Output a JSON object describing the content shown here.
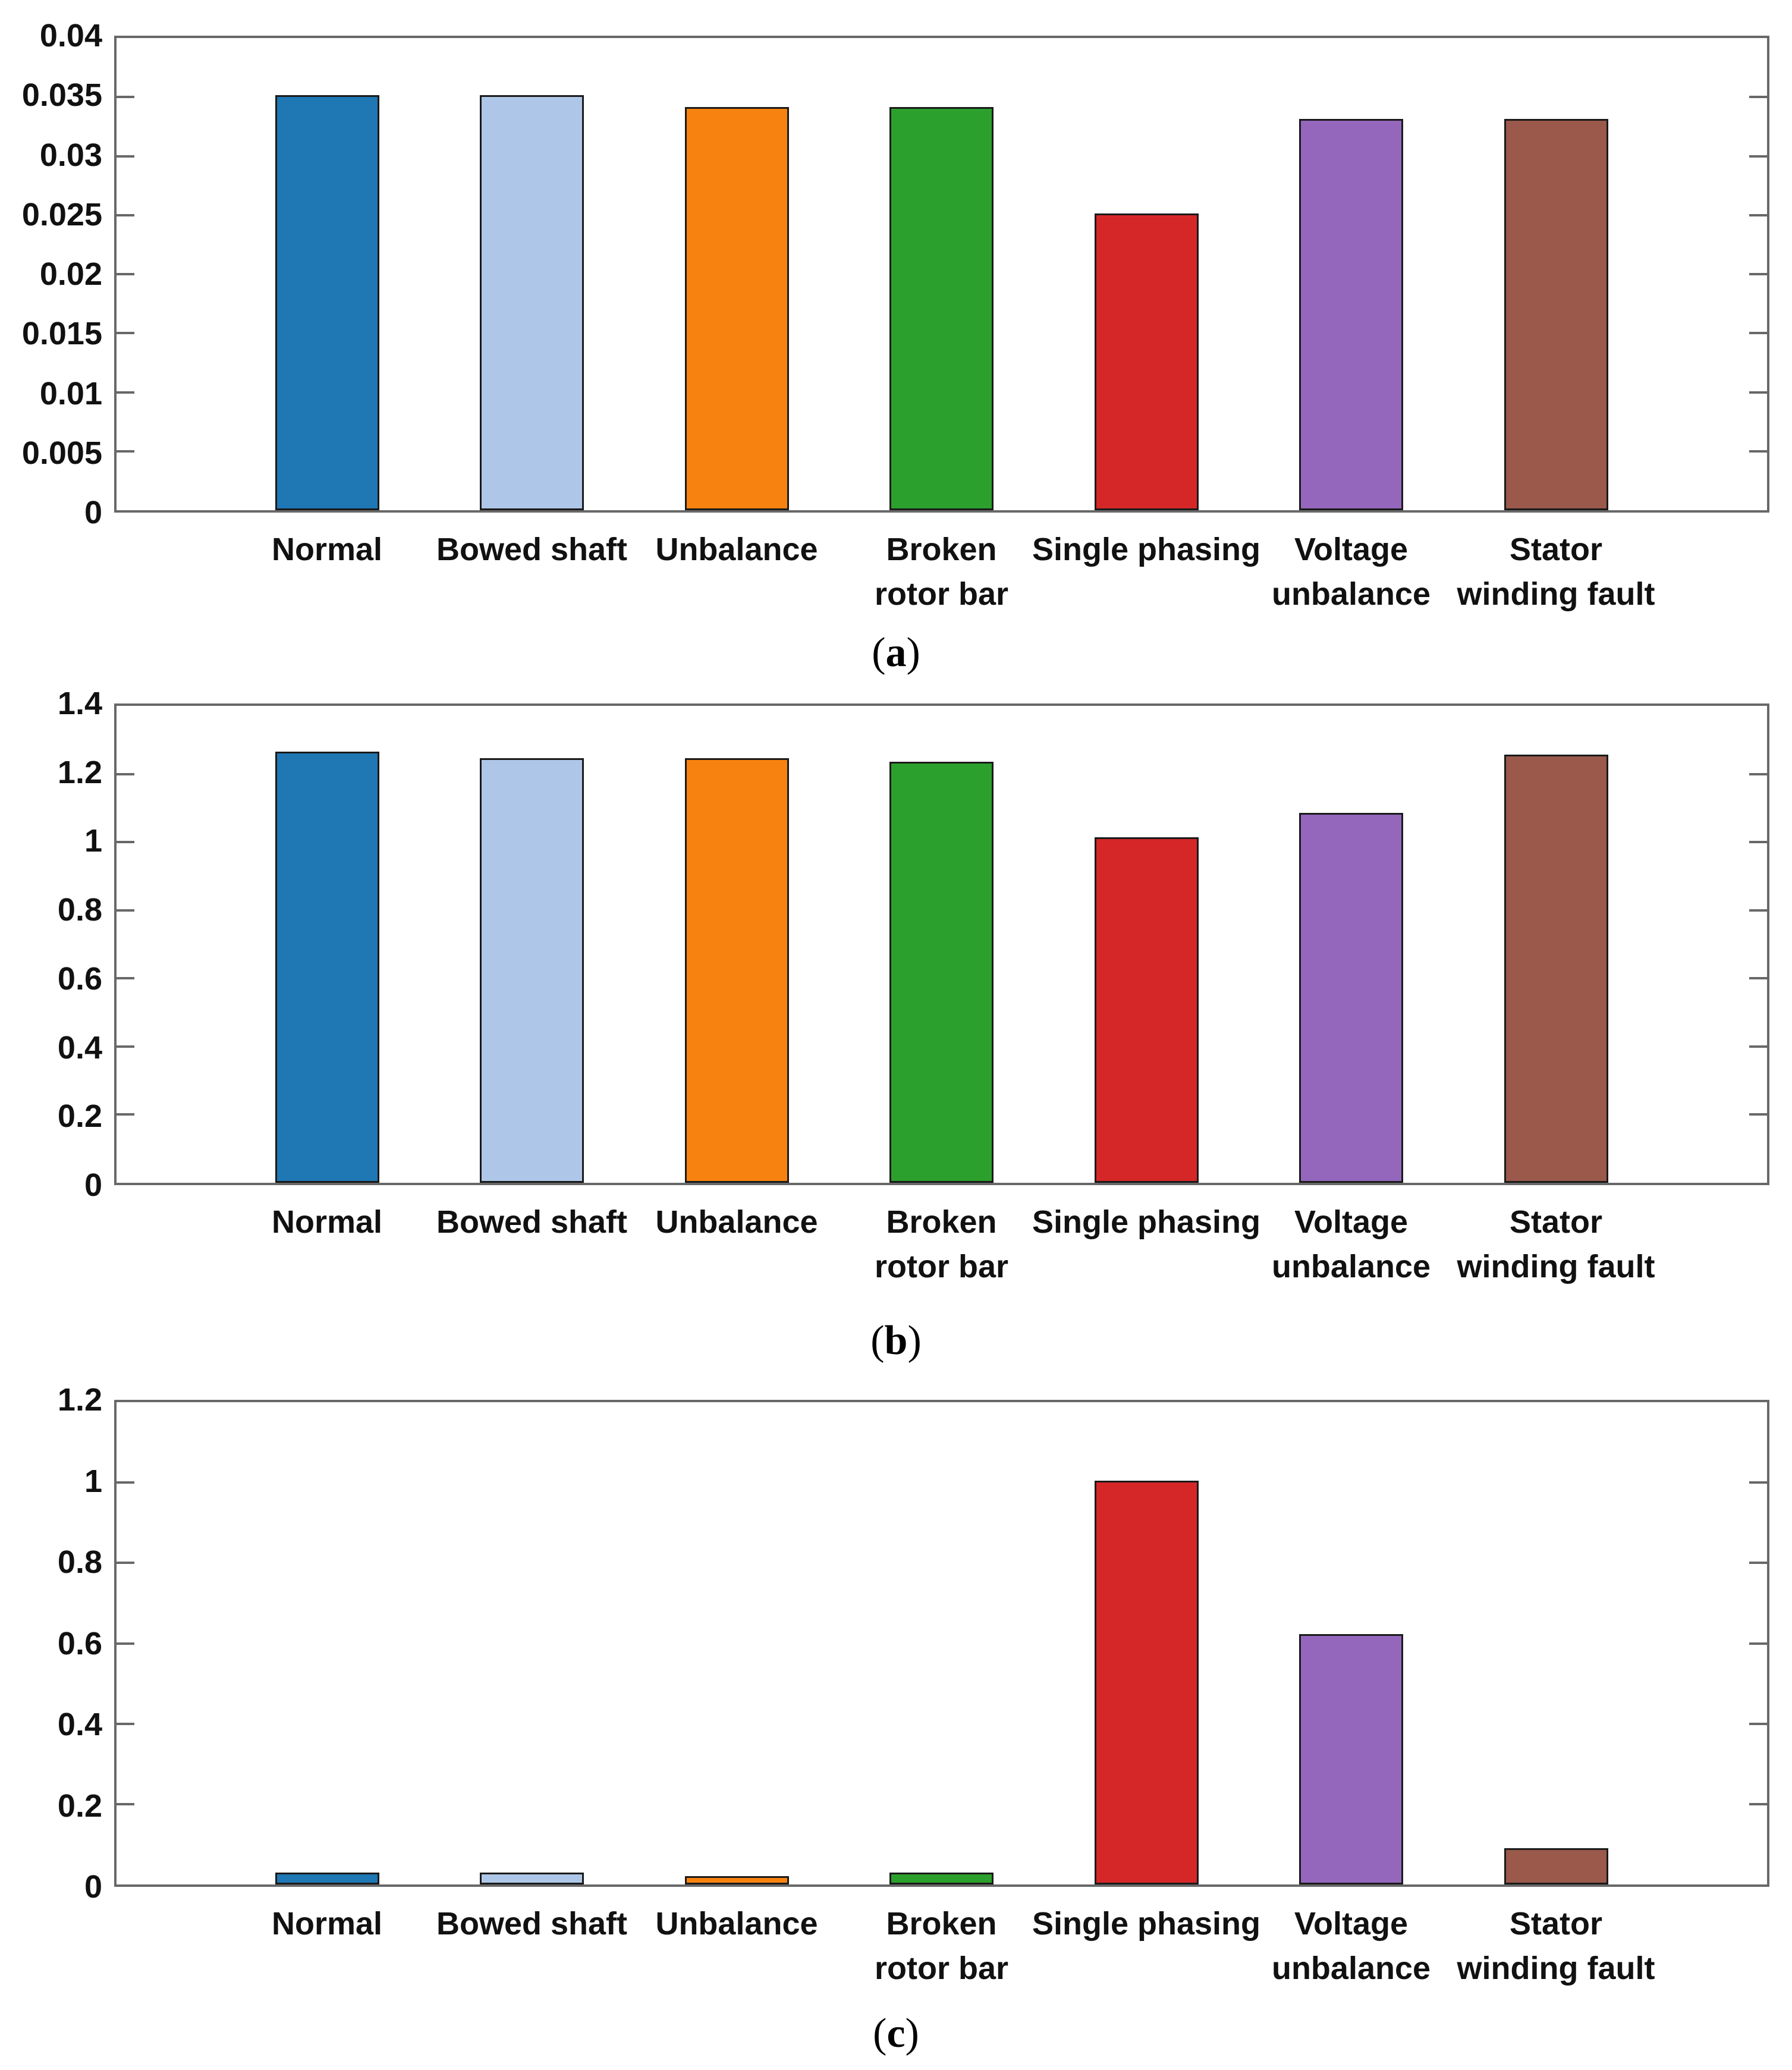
{
  "figure": {
    "background_color": "#ffffff",
    "axis_color": "#686868",
    "bar_edge_color": "#1a1a1a",
    "text_color": "#111111",
    "bar_colors": [
      "#1f77b4",
      "#aec7e8",
      "#f8820f",
      "#2ca02c",
      "#d62728",
      "#9467bd",
      "#9a594b"
    ],
    "bar_color_names": [
      "blue",
      "light-blue",
      "orange",
      "green",
      "red",
      "purple",
      "brown"
    ]
  },
  "chart_data": [
    {
      "id": "a",
      "type": "bar",
      "caption": "(a)",
      "caption_letter": "a",
      "categories": [
        "Normal",
        "Bowed shaft",
        "Unbalance",
        "Broken\nrotor bar",
        "Single phasing",
        "Voltage\nunbalance",
        "Stator\nwinding fault"
      ],
      "values": [
        0.035,
        0.035,
        0.034,
        0.034,
        0.025,
        0.033,
        0.033
      ],
      "ylim": [
        0,
        0.04
      ],
      "ytick_values": [
        0.04,
        0.035,
        0.03,
        0.025,
        0.02,
        0.015,
        0.01,
        0.005,
        0
      ],
      "ytick_labels": [
        "0.04",
        "0.035",
        "0.03",
        "0.025",
        "0.02",
        "0.015",
        "0.01",
        "0.005",
        "0"
      ],
      "xlabel": "",
      "ylabel": "",
      "grid": false,
      "legend": false
    },
    {
      "id": "b",
      "type": "bar",
      "caption": "(b)",
      "caption_letter": "b",
      "categories": [
        "Normal",
        "Bowed shaft",
        "Unbalance",
        "Broken\nrotor bar",
        "Single phasing",
        "Voltage\nunbalance",
        "Stator\nwinding fault"
      ],
      "values": [
        1.26,
        1.24,
        1.24,
        1.23,
        1.01,
        1.08,
        1.25
      ],
      "ylim": [
        0,
        1.4
      ],
      "ytick_values": [
        1.4,
        1.2,
        1,
        0.8,
        0.6,
        0.4,
        0.2,
        0
      ],
      "ytick_labels": [
        "1.4",
        "1.2",
        "1",
        "0.8",
        "0.6",
        "0.4",
        "0.2",
        "0"
      ],
      "xlabel": "",
      "ylabel": "",
      "grid": false,
      "legend": false
    },
    {
      "id": "c",
      "type": "bar",
      "caption": "(c)",
      "caption_letter": "c",
      "categories": [
        "Normal",
        "Bowed shaft",
        "Unbalance",
        "Broken\nrotor bar",
        "Single phasing",
        "Voltage\nunbalance",
        "Stator\nwinding fault"
      ],
      "values": [
        0.03,
        0.03,
        0.02,
        0.03,
        1.0,
        0.62,
        0.09
      ],
      "ylim": [
        0,
        1.2
      ],
      "ytick_values": [
        1.2,
        1,
        0.8,
        0.6,
        0.4,
        0.2,
        0
      ],
      "ytick_labels": [
        "1.2",
        "1",
        "0.8",
        "0.6",
        "0.4",
        "0.2",
        "0"
      ],
      "xlabel": "",
      "ylabel": "",
      "grid": false,
      "legend": false
    }
  ]
}
